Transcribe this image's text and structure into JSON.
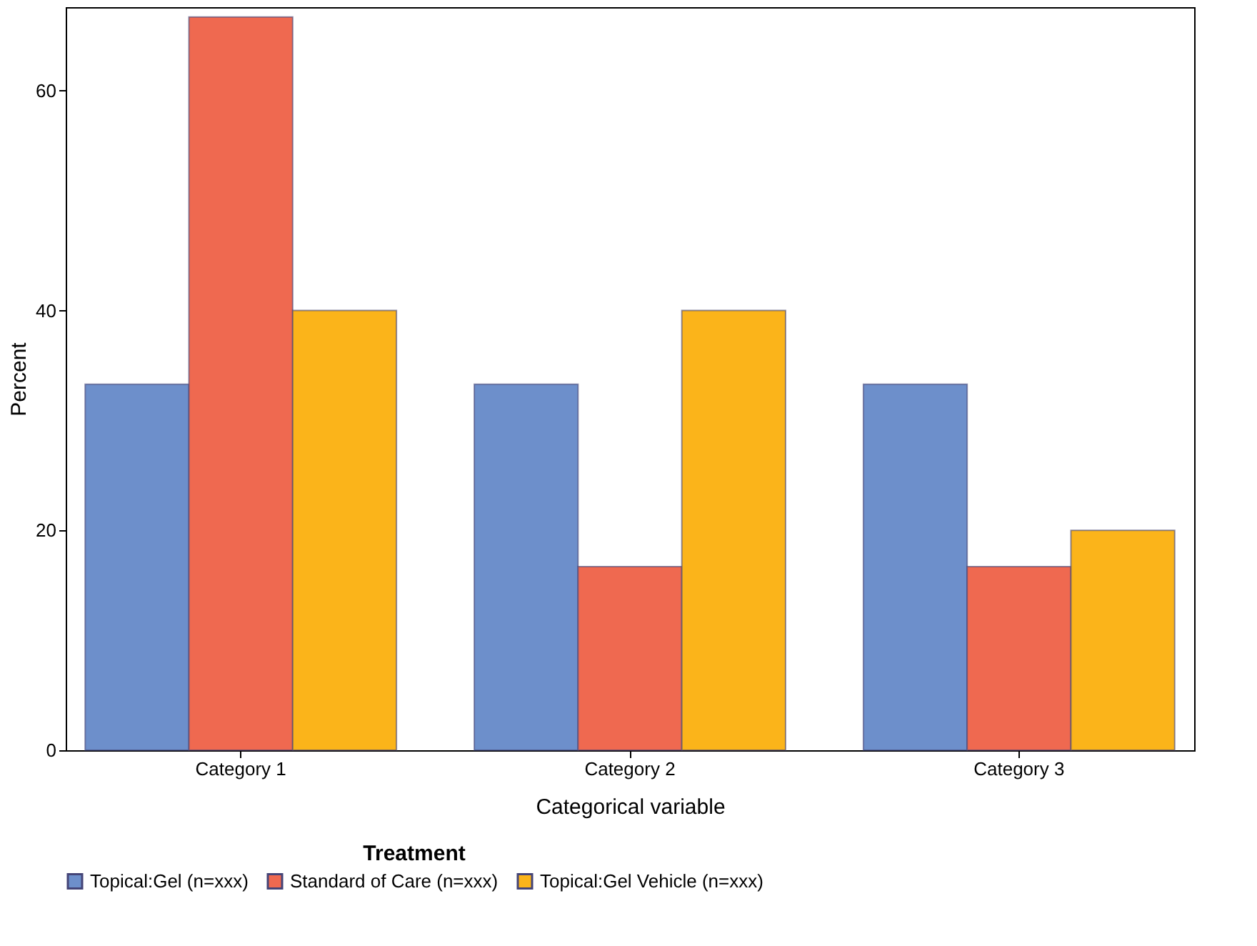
{
  "chart_data": {
    "type": "bar",
    "xlabel": "Categorical variable",
    "ylabel": "Percent",
    "legend_title": "Treatment",
    "categories": [
      "Category 1",
      "Category 2",
      "Category 3"
    ],
    "series": [
      {
        "name": "Topical:Gel (n=xxx)",
        "color": "#6d8fcb",
        "values": [
          33.3,
          33.3,
          33.3
        ]
      },
      {
        "name": "Standard of Care (n=xxx)",
        "color": "#ef6950",
        "values": [
          66.7,
          16.7,
          16.7
        ]
      },
      {
        "name": "Topical:Gel Vehicle (n=xxx)",
        "color": "#fbb41a",
        "values": [
          40,
          40,
          20
        ]
      }
    ],
    "ylim": [
      0,
      67.6
    ],
    "yticks": [
      0,
      20,
      40,
      60
    ],
    "grid": false,
    "legend": "bottom"
  }
}
